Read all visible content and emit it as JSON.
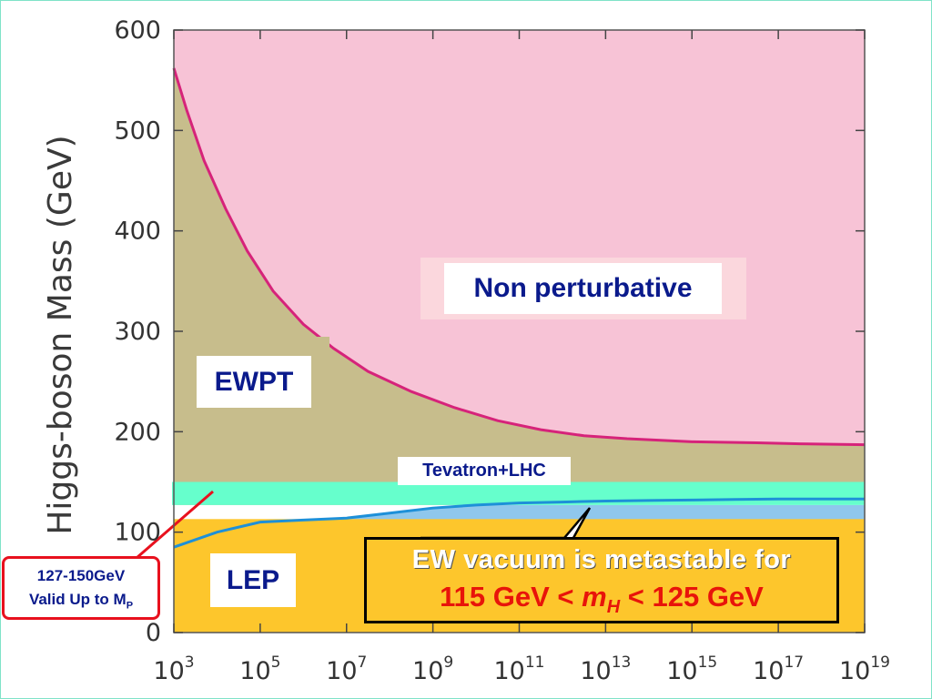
{
  "chart_data": {
    "type": "area",
    "title": "",
    "ylabel": "Higgs-boson Mass (GeV)",
    "xlabel": "",
    "x_scale": "log",
    "x_range": [
      1000.0,
      1e+19
    ],
    "ylim": [
      0,
      600
    ],
    "y_ticks": [
      0,
      100,
      200,
      300,
      400,
      500,
      600
    ],
    "x_tick_labels": [
      {
        "base": "10",
        "exp": "3"
      },
      {
        "base": "10",
        "exp": "5"
      },
      {
        "base": "10",
        "exp": "7"
      },
      {
        "base": "10",
        "exp": "9"
      },
      {
        "base": "10",
        "exp": "11"
      },
      {
        "base": "10",
        "exp": "13"
      },
      {
        "base": "10",
        "exp": "15"
      },
      {
        "base": "10",
        "exp": "17"
      },
      {
        "base": "10",
        "exp": "19"
      }
    ],
    "x_tick_exponents": [
      3,
      5,
      7,
      9,
      11,
      13,
      15,
      17,
      19
    ],
    "upper_bound_curve": {
      "log10_x": [
        3,
        3.3,
        3.7,
        4.2,
        4.7,
        5.3,
        6,
        6.7,
        7.5,
        8.5,
        9.5,
        10.5,
        11.5,
        12.5,
        13.5,
        15,
        16.5,
        17.5,
        19
      ],
      "y": [
        562,
        520,
        470,
        422,
        380,
        340,
        307,
        283,
        260,
        240,
        224,
        211,
        202,
        196,
        193,
        190,
        189,
        188,
        187
      ]
    },
    "lower_bound_curve": {
      "log10_x": [
        3,
        4,
        5,
        6,
        7,
        8,
        9,
        10,
        11,
        12,
        13,
        14,
        15,
        16,
        17,
        18,
        19
      ],
      "y": [
        85,
        100,
        110,
        112,
        114,
        119,
        124,
        127,
        129,
        130,
        131,
        131.5,
        132,
        132.5,
        133,
        133,
        133
      ]
    },
    "bands": {
      "tevatron_lhc": [
        127,
        150
      ],
      "lep": [
        0,
        113
      ]
    },
    "region_labels": {
      "non_perturbative": "Non perturbative",
      "ewpt": "EWPT",
      "tevatron_lhc": "Tevatron+LHC",
      "lep": "LEP"
    },
    "annotations": {
      "metastable_line1": "EW vacuum is metastable for",
      "metastable_line2_pre": "115 GeV < ",
      "metastable_line2_var": "m",
      "metastable_line2_sub": "H",
      "metastable_line2_post": " < 125 GeV",
      "callout_line1": "127-150GeV",
      "callout_line2": "Valid Up to M",
      "callout_sub": "P"
    },
    "colors": {
      "non_perturbative": "#f7c3d6",
      "ewpt": "#c7bd8c",
      "metastable": "#8fc7ec",
      "tevatron_lhc": "#66ffcc",
      "lep": "#fdc62c",
      "upper_curve": "#d6237a",
      "lower_curve": "#1e90d8",
      "callout_border": "#e8111e",
      "label_text": "#0a1a8c"
    },
    "grid": false
  }
}
